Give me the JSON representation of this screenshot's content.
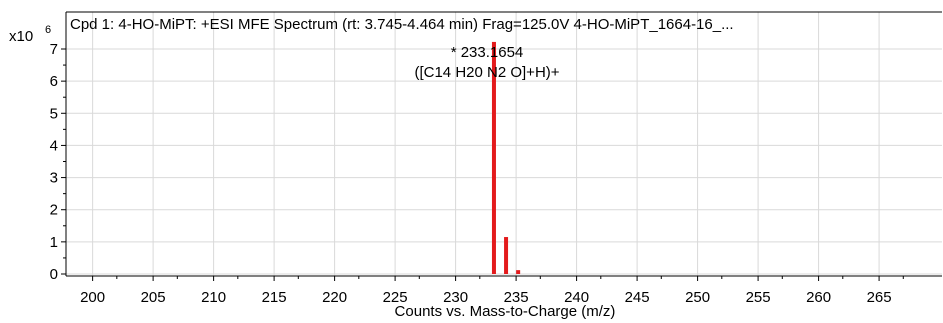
{
  "chart_data": {
    "type": "bar",
    "title": "Cpd 1: 4-HO-MiPT: +ESI MFE Spectrum (rt: 3.745-4.464 min) Frag=125.0V 4-HO-MiPT_1664-16_...",
    "xlabel": "Counts vs. Mass-to-Charge (m/z)",
    "ylabel": "",
    "y_scale_label": "x10",
    "y_scale_exponent": "6",
    "xlim": [
      197.8,
      270.2
    ],
    "ylim": [
      0,
      7.2
    ],
    "x_ticks": [
      200,
      205,
      210,
      215,
      220,
      225,
      230,
      235,
      240,
      245,
      250,
      255,
      260,
      265
    ],
    "y_ticks": [
      0,
      1,
      2,
      3,
      4,
      5,
      6,
      7
    ],
    "grid": true,
    "series": [
      {
        "x": [
          233.17,
          234.17,
          235.17
        ],
        "values": [
          7.22,
          1.15,
          0.12
        ]
      }
    ],
    "annotations": [
      {
        "line1": "* 233.1654",
        "line2": "([C14 H20 N2 O]+H)+"
      }
    ],
    "colors": {
      "bar": "#e31a1c",
      "grid": "#d9d9d9",
      "axis": "#000000"
    }
  }
}
